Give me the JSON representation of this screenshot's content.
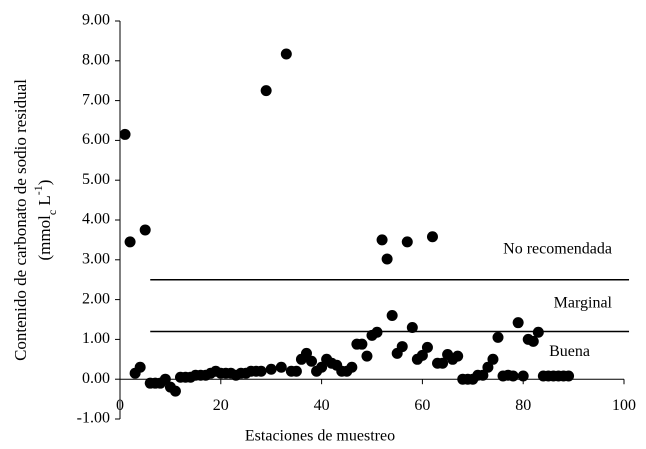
{
  "chart_data": {
    "type": "scatter",
    "x_label": "Estaciones de muestreo",
    "y_label": "Contenido de carbonato de sodio residual",
    "y_label_unit": [
      {
        "text": "(mmol"
      },
      {
        "text": "c",
        "style": "sub"
      },
      {
        "text": " L"
      },
      {
        "text": "-1",
        "style": "sup"
      },
      {
        "text": ")"
      }
    ],
    "x": [
      1,
      2,
      3,
      4,
      5,
      6,
      7,
      8,
      9,
      10,
      11,
      12,
      13,
      14,
      15,
      16,
      17,
      18,
      19,
      20,
      21,
      22,
      23,
      24,
      25,
      26,
      27,
      28,
      29,
      30,
      32,
      33,
      34,
      35,
      36,
      37,
      38,
      39,
      40,
      41,
      42,
      43,
      44,
      45,
      46,
      47,
      48,
      49,
      50,
      51,
      52,
      53,
      54,
      55,
      56,
      57,
      58,
      59,
      60,
      61,
      62,
      63,
      64,
      65,
      66,
      67,
      68,
      69,
      70,
      71,
      72,
      73,
      74,
      75,
      76,
      77,
      78,
      79,
      80,
      81,
      82,
      83,
      84,
      85,
      86,
      87,
      88,
      89
    ],
    "values": [
      6.15,
      3.45,
      0.15,
      0.3,
      3.75,
      -0.1,
      -0.1,
      -0.1,
      0.0,
      -0.2,
      -0.3,
      0.05,
      0.05,
      0.05,
      0.1,
      0.1,
      0.1,
      0.15,
      0.2,
      0.15,
      0.15,
      0.15,
      0.1,
      0.15,
      0.15,
      0.2,
      0.2,
      0.2,
      7.25,
      0.25,
      0.3,
      8.17,
      0.2,
      0.2,
      0.5,
      0.65,
      0.45,
      0.2,
      0.3,
      0.5,
      0.4,
      0.35,
      0.2,
      0.2,
      0.3,
      0.88,
      0.88,
      0.58,
      1.1,
      1.18,
      3.5,
      3.02,
      1.6,
      0.65,
      0.82,
      3.45,
      1.3,
      0.5,
      0.6,
      0.8,
      3.58,
      0.4,
      0.4,
      0.62,
      0.5,
      0.58,
      0.0,
      0.0,
      0.0,
      0.1,
      0.1,
      0.3,
      0.5,
      1.05,
      0.08,
      0.1,
      0.08,
      1.42,
      0.08,
      1.0,
      0.95,
      1.18,
      0.08,
      0.08,
      0.08,
      0.08,
      0.08,
      0.08
    ],
    "color": "#000000",
    "xlim": [
      0,
      100
    ],
    "xticks": [
      0,
      20,
      40,
      60,
      80,
      100
    ],
    "ylim": [
      -1,
      9
    ],
    "yticks": [
      {
        "value": -1,
        "label": "-1.00"
      },
      {
        "value": 0,
        "label": "0.00"
      },
      {
        "value": 1,
        "label": "1.00"
      },
      {
        "value": 2,
        "label": "2.00"
      },
      {
        "value": 3,
        "label": "3.00"
      },
      {
        "value": 4,
        "label": "4.00"
      },
      {
        "value": 5,
        "label": "5.00"
      },
      {
        "value": 6,
        "label": "6.00"
      },
      {
        "value": 7,
        "label": "7.00"
      },
      {
        "value": 8,
        "label": "8.00"
      },
      {
        "value": 9,
        "label": "9.00"
      }
    ],
    "thresholds": [
      {
        "y": 2.5,
        "x": [
          6,
          101
        ]
      },
      {
        "y": 1.2,
        "x": [
          6,
          101
        ]
      }
    ],
    "zone_labels": [
      "No recomendada",
      "Marginal",
      "Buena"
    ]
  }
}
